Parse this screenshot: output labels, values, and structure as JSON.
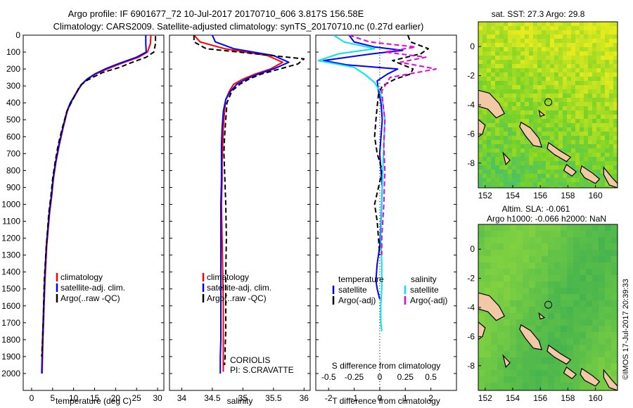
{
  "header": {
    "line1": "Argo profile: IF 6901677_72 10-Jul-2017 20170710_606 3.817S 156.58E",
    "line2": "Climatology: CARS2009. Satellite-adjusted climatology: synTS_20170710.nc (0.27d earlier)"
  },
  "colors": {
    "climatology": "#ff0000",
    "satellite": "#0000ff",
    "argo": "#000000",
    "salinity_sat": "#00e5ee",
    "salinity_argo": "#e600e6",
    "land": "#f2c9a5"
  },
  "depth_axis": {
    "ticks": [
      0,
      100,
      200,
      300,
      400,
      500,
      600,
      700,
      800,
      900,
      1000,
      1100,
      1200,
      1300,
      1400,
      1500,
      1600,
      1700,
      1800,
      1900,
      2000
    ],
    "range": [
      0,
      2100
    ]
  },
  "chart_data": [
    {
      "type": "line",
      "panel": "temperature",
      "xlabel": "temperature (deg C)",
      "ylabel": "",
      "xlim": [
        -2,
        31.5
      ],
      "ylim": [
        2100,
        0
      ],
      "xticks": [
        0,
        5,
        10,
        15,
        20,
        25,
        30
      ],
      "legend": [
        "climatology",
        "satellite-adj. clim.",
        "Argo(..raw -QC)"
      ],
      "series": [
        {
          "name": "climatology",
          "color": "#ff0000",
          "x": [
            28.4,
            28.3,
            27.6,
            25.5,
            21,
            18,
            15.2,
            13.3,
            12,
            11.2,
            10.5,
            9.3,
            8.5,
            7.5,
            6.6,
            5.8,
            5.2,
            4.8,
            4.3,
            3.6,
            3.2,
            2.9,
            2.7,
            2.6,
            2.5
          ],
          "y": [
            0,
            50,
            100,
            130,
            170,
            200,
            230,
            260,
            290,
            320,
            350,
            400,
            450,
            550,
            650,
            750,
            850,
            950,
            1050,
            1250,
            1450,
            1650,
            1800,
            1900,
            2000
          ]
        },
        {
          "name": "satellite-adj. clim.",
          "color": "#0000ff",
          "x": [
            27.2,
            27.2,
            27.3,
            25,
            20.5,
            17.5,
            15,
            13.2,
            11.9,
            11.1,
            10.4,
            9.2,
            8.4,
            7.4,
            6.5,
            5.7,
            5.1,
            4.7,
            4.2,
            3.5,
            3.1,
            2.8,
            2.6,
            2.5,
            2.4
          ],
          "y": [
            0,
            50,
            100,
            130,
            170,
            200,
            230,
            260,
            290,
            320,
            350,
            400,
            450,
            550,
            650,
            750,
            850,
            950,
            1050,
            1250,
            1450,
            1650,
            1800,
            1900,
            2000
          ]
        },
        {
          "name": "Argo(..raw -QC)",
          "color": "#000000",
          "dashed": true,
          "x": [
            29.5,
            29.5,
            29.1,
            27.3,
            24,
            21,
            17,
            14.5,
            13,
            11.5,
            9.4,
            8.4,
            7.3,
            6.3,
            5.6,
            5,
            4.6,
            4.1,
            3.5,
            3,
            2.8,
            2.6,
            2.4
          ],
          "y": [
            5,
            50,
            100,
            130,
            160,
            190,
            220,
            250,
            270,
            300,
            400,
            450,
            550,
            650,
            750,
            850,
            950,
            1050,
            1250,
            1450,
            1650,
            1800,
            1900
          ]
        }
      ]
    },
    {
      "type": "line",
      "panel": "salinity",
      "xlabel": "salinity",
      "ylabel": "",
      "xlim": [
        33.8,
        36.1
      ],
      "ylim": [
        2100,
        0
      ],
      "xticks": [
        34,
        34.5,
        35,
        35.5,
        36
      ],
      "legend": [
        "climatology",
        "satellite-adj. clim.",
        "Argo(..raw -QC)"
      ],
      "annotation": [
        "CORIOLIS",
        "PI: S.CRAVATTE"
      ],
      "series": [
        {
          "name": "climatology",
          "color": "#ff0000",
          "x": [
            34.2,
            34.3,
            34.7,
            35.4,
            35.65,
            35.45,
            35.2,
            35.0,
            34.85,
            34.78,
            34.72,
            34.7,
            34.68,
            34.67,
            34.66,
            34.66,
            34.65,
            34.66,
            34.67,
            34.68,
            34.68,
            34.68,
            34.68
          ],
          "y": [
            0,
            40,
            80,
            120,
            160,
            200,
            230,
            260,
            290,
            330,
            380,
            450,
            550,
            650,
            750,
            850,
            1000,
            1200,
            1400,
            1600,
            1800,
            1900,
            1990
          ]
        },
        {
          "name": "satellite-adj. clim.",
          "color": "#0000ff",
          "x": [
            34.5,
            34.55,
            34.85,
            35.5,
            35.75,
            35.5,
            35.25,
            35.05,
            34.9,
            34.8,
            34.72,
            34.68,
            34.66,
            34.65,
            34.65,
            34.65,
            34.64,
            34.64,
            34.64,
            34.64,
            34.64,
            34.63,
            34.63
          ],
          "y": [
            0,
            40,
            80,
            120,
            160,
            200,
            230,
            260,
            290,
            330,
            380,
            450,
            550,
            650,
            750,
            850,
            1000,
            1200,
            1400,
            1600,
            1800,
            1900,
            2000
          ]
        },
        {
          "name": "Argo(..raw -QC)",
          "color": "#000000",
          "dashed": true,
          "x": [
            34.2,
            34.2,
            34.4,
            35.2,
            36.0,
            35.9,
            35.6,
            35.3,
            35.1,
            34.95,
            34.82,
            34.74,
            34.72,
            34.7,
            34.69,
            34.7,
            34.72,
            34.73,
            34.72,
            34.72,
            34.72,
            34.71,
            34.71,
            34.7
          ],
          "y": [
            0,
            40,
            80,
            110,
            140,
            170,
            200,
            230,
            260,
            290,
            330,
            400,
            500,
            600,
            700,
            800,
            1000,
            1200,
            1400,
            1600,
            1750,
            1850,
            1900,
            1950
          ]
        }
      ]
    },
    {
      "type": "line",
      "panel": "difference",
      "xlabel": "T difference from climatology",
      "x2label": "S difference from climatology",
      "xlim": [
        -2.5,
        3
      ],
      "ylim": [
        2100,
        0
      ],
      "xticks": [
        -2,
        -1,
        0,
        1,
        2
      ],
      "x2ticks": [
        "-0.5",
        "-0.25",
        "0",
        "0.25",
        "0.5"
      ],
      "legend_titles": [
        "temperature",
        "salinity"
      ],
      "legend": [
        "satellite",
        "Argo(-adj)",
        "satellite",
        "Argo(-adj)"
      ],
      "series": [
        {
          "name": "satellite",
          "group": "temperature",
          "color": "#0000ff",
          "x": [
            -1.2,
            -1.0,
            -0.2,
            0.9,
            -0.3,
            -2.2,
            -1.3,
            0.7,
            0.3,
            -0.1,
            -0.05,
            0.05,
            0.1,
            0.05,
            0.0,
            0.1,
            0.05,
            0.0,
            -0.1,
            -0.15,
            -0.1,
            0.0
          ],
          "y": [
            0,
            40,
            70,
            90,
            110,
            150,
            175,
            200,
            230,
            270,
            330,
            400,
            500,
            600,
            700,
            900,
            1100,
            1250,
            1350,
            1450,
            1500,
            1560
          ]
        },
        {
          "name": "Argo(-adj)",
          "group": "temperature",
          "color": "#000000",
          "dashed": true,
          "x": [
            1.1,
            1.2,
            1.9,
            1.6,
            0.5,
            1.3,
            1.2,
            0.6,
            0.1,
            -0.05,
            -0.1,
            -0.15,
            -0.2,
            -0.1,
            0.1,
            -0.05,
            -0.2,
            -0.1,
            -0.05,
            0.0
          ],
          "y": [
            0,
            40,
            80,
            110,
            150,
            200,
            230,
            260,
            300,
            350,
            420,
            500,
            600,
            700,
            800,
            900,
            1000,
            1100,
            1200,
            1300
          ]
        },
        {
          "name": "satellite",
          "group": "salinity",
          "color": "#00e5ee",
          "x": [
            -0.45,
            -0.35,
            -0.05,
            -0.4,
            -0.6,
            -0.25,
            -0.15,
            -0.05,
            0.0,
            0.03,
            0.05,
            0.04,
            0.03,
            0.02,
            0.01,
            0.02,
            0.02,
            0.01,
            0.01,
            0.02
          ],
          "y": [
            0,
            40,
            80,
            110,
            150,
            190,
            230,
            280,
            330,
            400,
            500,
            650,
            800,
            1000,
            1200,
            1350,
            1500,
            1600,
            1700,
            1750
          ]
        },
        {
          "name": "Argo(-adj)",
          "group": "salinity",
          "color": "#e600e6",
          "dashed": true,
          "x": [
            -0.3,
            -0.1,
            0.35,
            0.05,
            0.45,
            0.2,
            0.55,
            0.1,
            0.02,
            0.03,
            0.05,
            0.04,
            0.05,
            0.04,
            0.02,
            0.02
          ],
          "y": [
            0,
            40,
            70,
            100,
            130,
            160,
            200,
            250,
            330,
            400,
            500,
            650,
            800,
            1000,
            1200,
            1300
          ]
        }
      ]
    }
  ],
  "maps": {
    "sst": {
      "title": "sat. SST: 27.3 Argo: 29.8",
      "xticks": [
        "152",
        "154",
        "156",
        "158",
        "160"
      ],
      "yticks": [
        "0",
        "-2",
        "-4",
        "-6",
        "-8"
      ]
    },
    "sla": {
      "title_line1": "Altim. SLA: -0.061",
      "title_line2": "Argo h1000: -0.066 h2000: NaN",
      "xticks": [
        "152",
        "154",
        "156",
        "158",
        "160"
      ],
      "yticks": [
        "0",
        "-2",
        "-4",
        "-6",
        "-8"
      ]
    },
    "lon_range": [
      151.5,
      161.6
    ],
    "lat_range": [
      -9.7,
      1.7
    ],
    "argo_position": {
      "lon": 156.58,
      "lat": -3.817
    }
  },
  "footer": {
    "stamp": "©IMOS 17-Jul-2017 20:39:33"
  }
}
